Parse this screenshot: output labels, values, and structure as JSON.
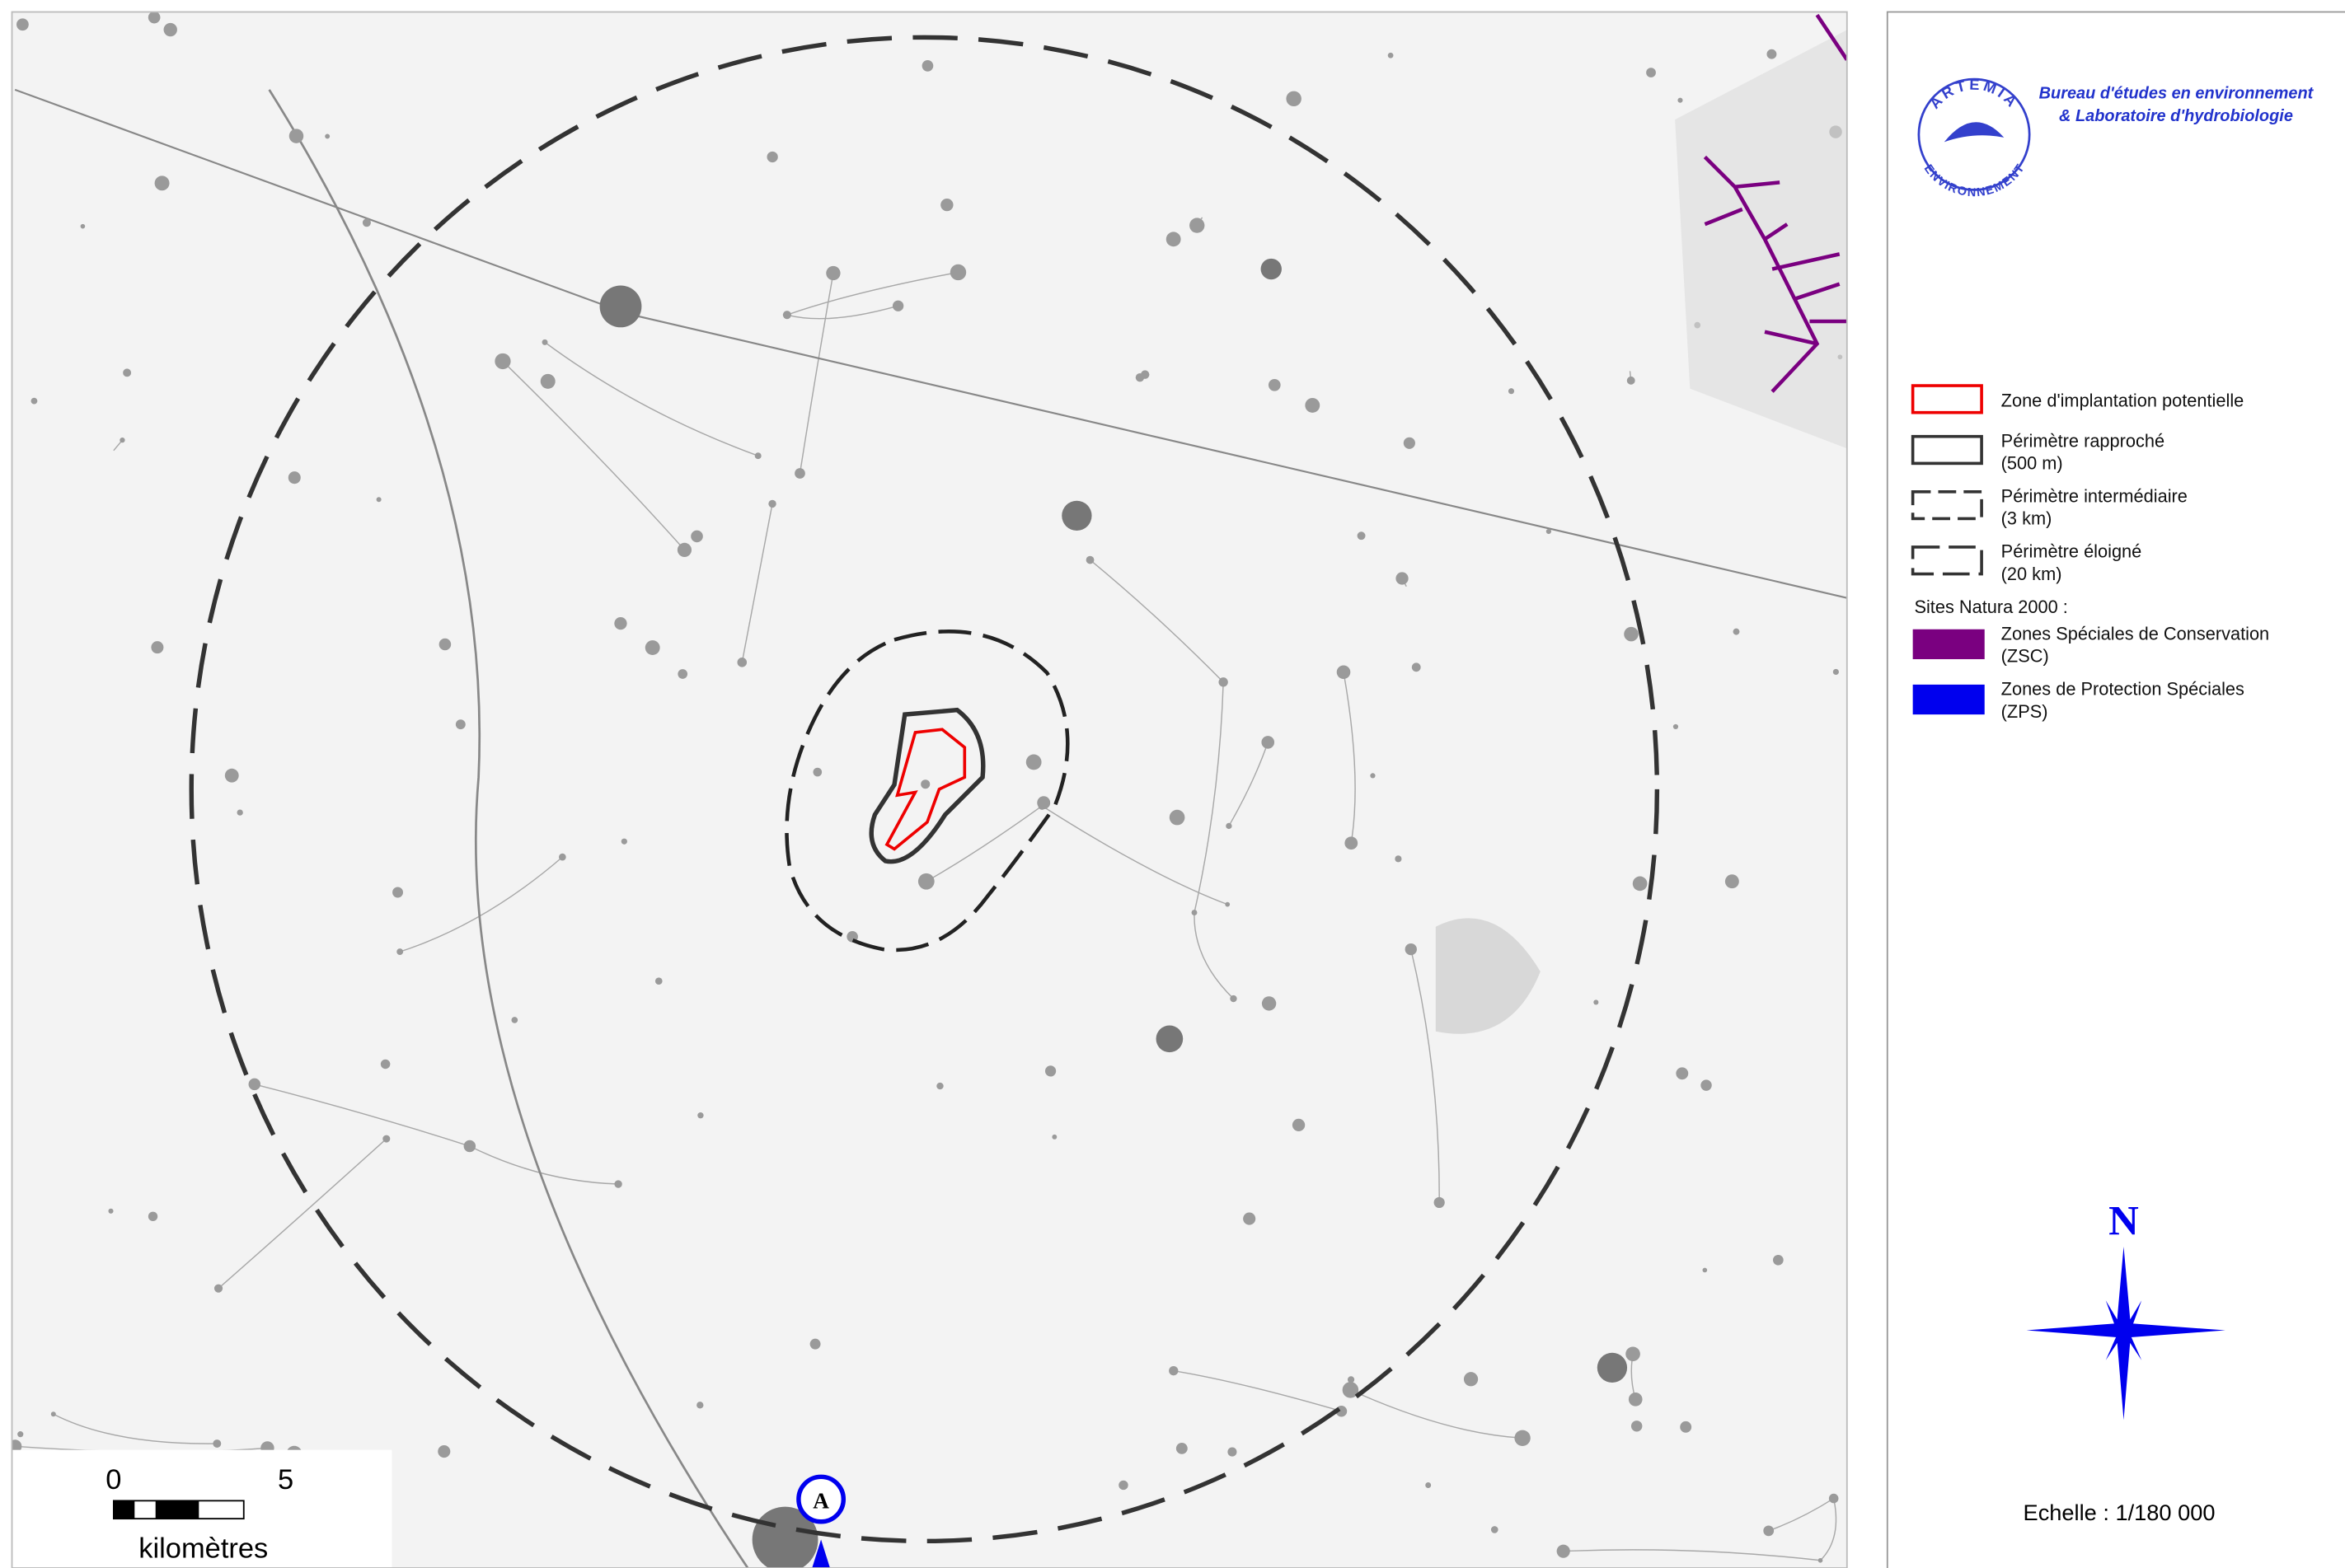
{
  "header": {
    "company_line1": "Bureau d'études en environnement",
    "company_line2": "& Laboratoire d'hydrobiologie",
    "logo_top": "ARTEMIA",
    "logo_bottom": "ENVIRONNEMENT"
  },
  "legend": {
    "items": [
      {
        "label": "Zone d'implantation potentielle"
      },
      {
        "label": "Périmètre rapproché",
        "detail": "(500 m)"
      },
      {
        "label": "Périmètre intermédiaire",
        "detail": "(3 km)"
      },
      {
        "label": "Périmètre éloigné",
        "detail": "(20 km)"
      }
    ],
    "natura_title": "Sites Natura 2000 :",
    "natura_items": [
      {
        "label": "Zones Spéciales de Conservation",
        "detail": "(ZSC)"
      },
      {
        "label": "Zones de Protection Spéciales",
        "detail": "(ZPS)"
      }
    ]
  },
  "compass": {
    "north": "N"
  },
  "scale_bar": {
    "start": "0",
    "end": "5",
    "unit": "kilomètres"
  },
  "scale_text": "Echelle : 1/180 000",
  "marker": {
    "label": "A"
  }
}
